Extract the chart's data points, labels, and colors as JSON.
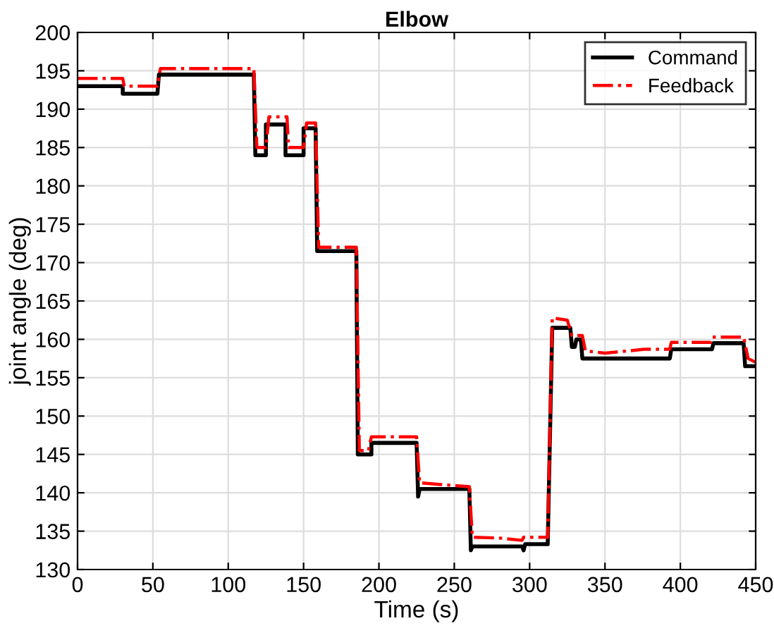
{
  "chart_data": {
    "type": "line",
    "title": "Elbow",
    "xlabel": "Time (s)",
    "ylabel": "joint angle (deg)",
    "xlim": [
      0,
      450
    ],
    "ylim": [
      130,
      200
    ],
    "xticks": [
      0,
      50,
      100,
      150,
      200,
      250,
      300,
      350,
      400,
      450
    ],
    "yticks": [
      130,
      135,
      140,
      145,
      150,
      155,
      160,
      165,
      170,
      175,
      180,
      185,
      190,
      195,
      200
    ],
    "grid": true,
    "legend": "top right",
    "series": [
      {
        "name": "Command",
        "color": "#000000",
        "line_style": "solid",
        "x": [
          0,
          30,
          30,
          53,
          54,
          117,
          118,
          125,
          125,
          138,
          138,
          150,
          150,
          158,
          159,
          185,
          186,
          195,
          195,
          225,
          226,
          227,
          260,
          261,
          262,
          295,
          296,
          297,
          312,
          315,
          316,
          327,
          328,
          330,
          331,
          334,
          335,
          393,
          394,
          421,
          422,
          442,
          443,
          450
        ],
        "values": [
          193,
          193,
          192,
          192,
          194.5,
          194.5,
          184,
          184,
          188,
          188,
          184,
          184,
          187.5,
          187.5,
          171.5,
          171.5,
          145,
          145,
          146.5,
          146.5,
          139.5,
          140.5,
          140.5,
          132.5,
          133,
          133,
          132.5,
          133.3,
          133.3,
          161.5,
          161.5,
          161.5,
          159,
          159,
          160,
          160,
          157.5,
          157.5,
          158.7,
          158.7,
          159.5,
          159.5,
          156.5,
          156.5
        ]
      },
      {
        "name": "Feedback",
        "color": "#ff0000",
        "line_style": "dashdot",
        "x": [
          0,
          30,
          31,
          53,
          55,
          117,
          119,
          125,
          127,
          139,
          140,
          150,
          152,
          158,
          160,
          185,
          187,
          193,
          195,
          225,
          227,
          240,
          260,
          262,
          280,
          295,
          296,
          312,
          315,
          325,
          328,
          335,
          337,
          350,
          376,
          393,
          394,
          420,
          421,
          442,
          445,
          450
        ],
        "values": [
          194,
          194,
          193,
          193,
          195.3,
          195.3,
          185,
          185,
          189,
          189,
          185,
          185,
          188.2,
          188.2,
          172,
          172,
          145.5,
          145.5,
          147.3,
          147.3,
          141.3,
          141.1,
          140.8,
          134.2,
          134.1,
          133.8,
          134.2,
          134.2,
          162.8,
          162.5,
          160.5,
          160.5,
          158.5,
          158.2,
          158.7,
          158.7,
          159.6,
          159.6,
          160.3,
          160.3,
          157.5,
          157
        ]
      }
    ]
  }
}
